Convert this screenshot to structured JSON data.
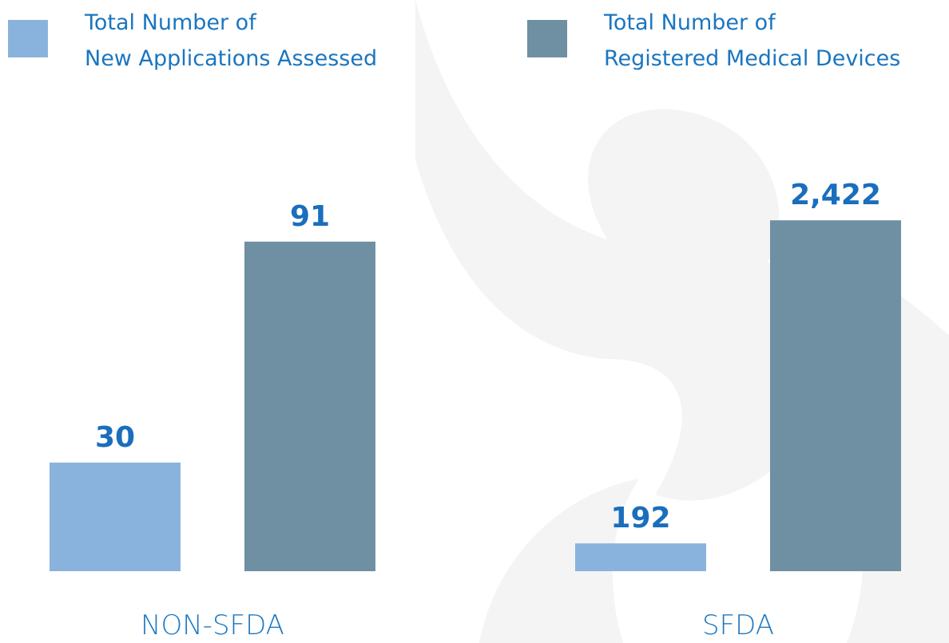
{
  "chart_data": [
    {
      "type": "bar",
      "categories": [
        "NON-SFDA"
      ],
      "ylim": [
        0,
        100
      ],
      "series": [
        {
          "name": "Total Number of\nNew Applications Assessed",
          "color": "#89b3dc",
          "values": [
            30
          ]
        },
        {
          "name": "Total Number of\nRegistered Medical Devices",
          "color": "#6f8fa3",
          "values": [
            91
          ]
        }
      ]
    },
    {
      "type": "bar",
      "categories": [
        "SFDA"
      ],
      "ylim": [
        0,
        2500
      ],
      "series": [
        {
          "color": "#89b3dc",
          "values": [
            192
          ]
        },
        {
          "color": "#6f8fa3",
          "values": [
            2422
          ],
          "value_labels": [
            "2,422"
          ]
        }
      ]
    }
  ]
}
